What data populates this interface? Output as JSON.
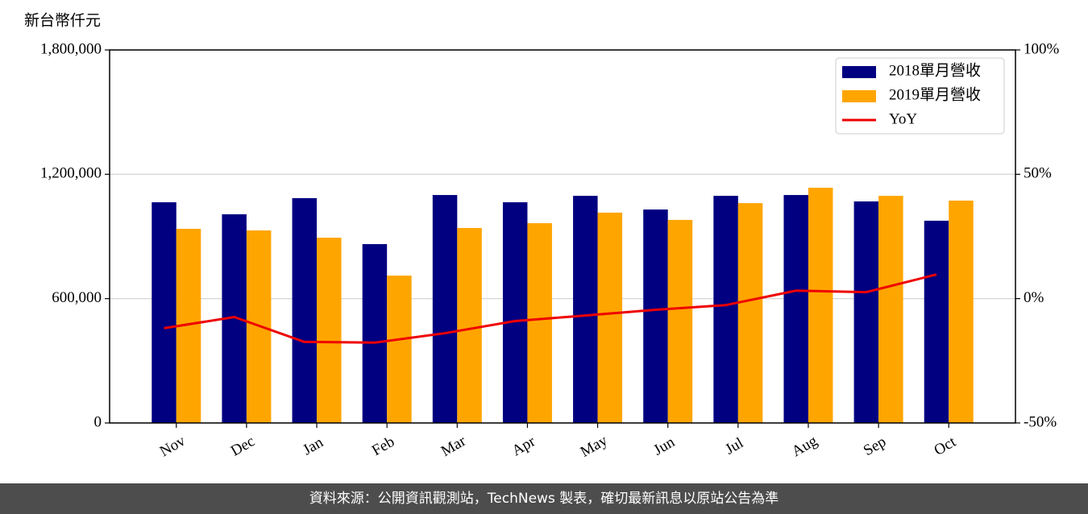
{
  "chart_data": {
    "type": "bar",
    "ylabel": "新台幣仟元",
    "categories": [
      "Nov",
      "Dec",
      "Jan",
      "Feb",
      "Mar",
      "Apr",
      "May",
      "Jun",
      "Jul",
      "Aug",
      "Sep",
      "Oct"
    ],
    "series": [
      {
        "name": "2018單月營收",
        "type": "bar",
        "color": "#000080",
        "values": [
          1065000,
          1007000,
          1085000,
          863000,
          1100000,
          1065000,
          1096000,
          1030000,
          1096000,
          1100000,
          1069000,
          976000
        ]
      },
      {
        "name": "2019單月營收",
        "type": "bar",
        "color": "#ffa500",
        "values": [
          937000,
          929000,
          894000,
          711000,
          941000,
          964000,
          1015000,
          980000,
          1061000,
          1135000,
          1096000,
          1073000
        ]
      },
      {
        "name": "YoY",
        "type": "line",
        "axis": "y2",
        "color": "#ee0000",
        "values": [
          -11.9,
          -7.4,
          -17.4,
          -17.7,
          -13.9,
          -9.0,
          -6.8,
          -4.5,
          -2.6,
          3.2,
          2.6,
          9.7
        ]
      }
    ],
    "ylim": [
      0,
      1800000
    ],
    "yticks": [
      0,
      {
        "value": 600000,
        "label": "600,000"
      },
      {
        "value": 1200000,
        "label": "1,200,000"
      },
      {
        "value": 1800000,
        "label": "1,800,000"
      }
    ],
    "y2lim": [
      -50,
      100
    ],
    "y2ticks": [
      {
        "value": -50,
        "label": "-50%"
      },
      {
        "value": 0,
        "label": "0%"
      },
      {
        "value": 50,
        "label": "50%"
      },
      {
        "value": 100,
        "label": "100%"
      }
    ],
    "grid": true,
    "legend": "upper right"
  },
  "footer": "資料來源：公開資訊觀測站，TechNews 製表，確切最新訊息以原站公告為準"
}
